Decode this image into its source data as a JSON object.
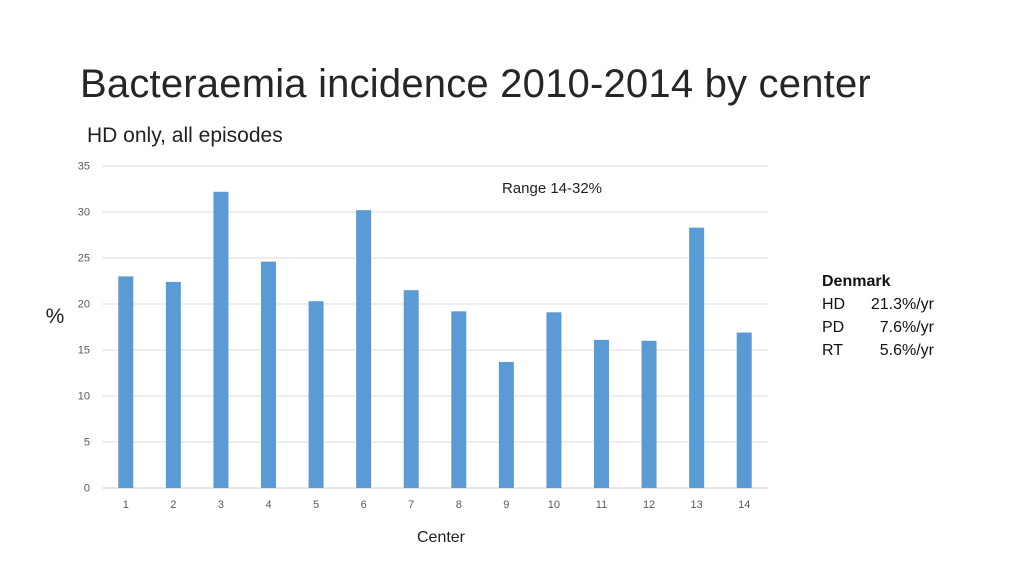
{
  "title": "Bacteraemia incidence 2010-2014 by center",
  "subtitle": "HD only, all episodes",
  "chart_data": {
    "type": "bar",
    "title": "Bacteraemia incidence 2010-2014 by center",
    "subtitle": "HD only, all episodes",
    "xlabel": "Center",
    "ylabel": "%",
    "categories": [
      "1",
      "2",
      "3",
      "4",
      "5",
      "6",
      "7",
      "8",
      "9",
      "10",
      "11",
      "12",
      "13",
      "14"
    ],
    "values": [
      23.0,
      22.4,
      32.2,
      24.6,
      20.3,
      30.2,
      21.5,
      19.2,
      13.7,
      19.1,
      16.1,
      16.0,
      28.3,
      16.9
    ],
    "ylim": [
      0,
      35
    ],
    "yticks": [
      0,
      5,
      10,
      15,
      20,
      25,
      30,
      35
    ],
    "grid": true,
    "bar_color": "#5b9bd5",
    "annotation": "Range 14-32%"
  },
  "sidebar": {
    "heading": "Denmark",
    "rows": [
      {
        "label": "HD",
        "value": "21.3%/yr"
      },
      {
        "label": "PD",
        "value": "7.6%/yr"
      },
      {
        "label": "RT",
        "value": "5.6%/yr"
      }
    ]
  }
}
